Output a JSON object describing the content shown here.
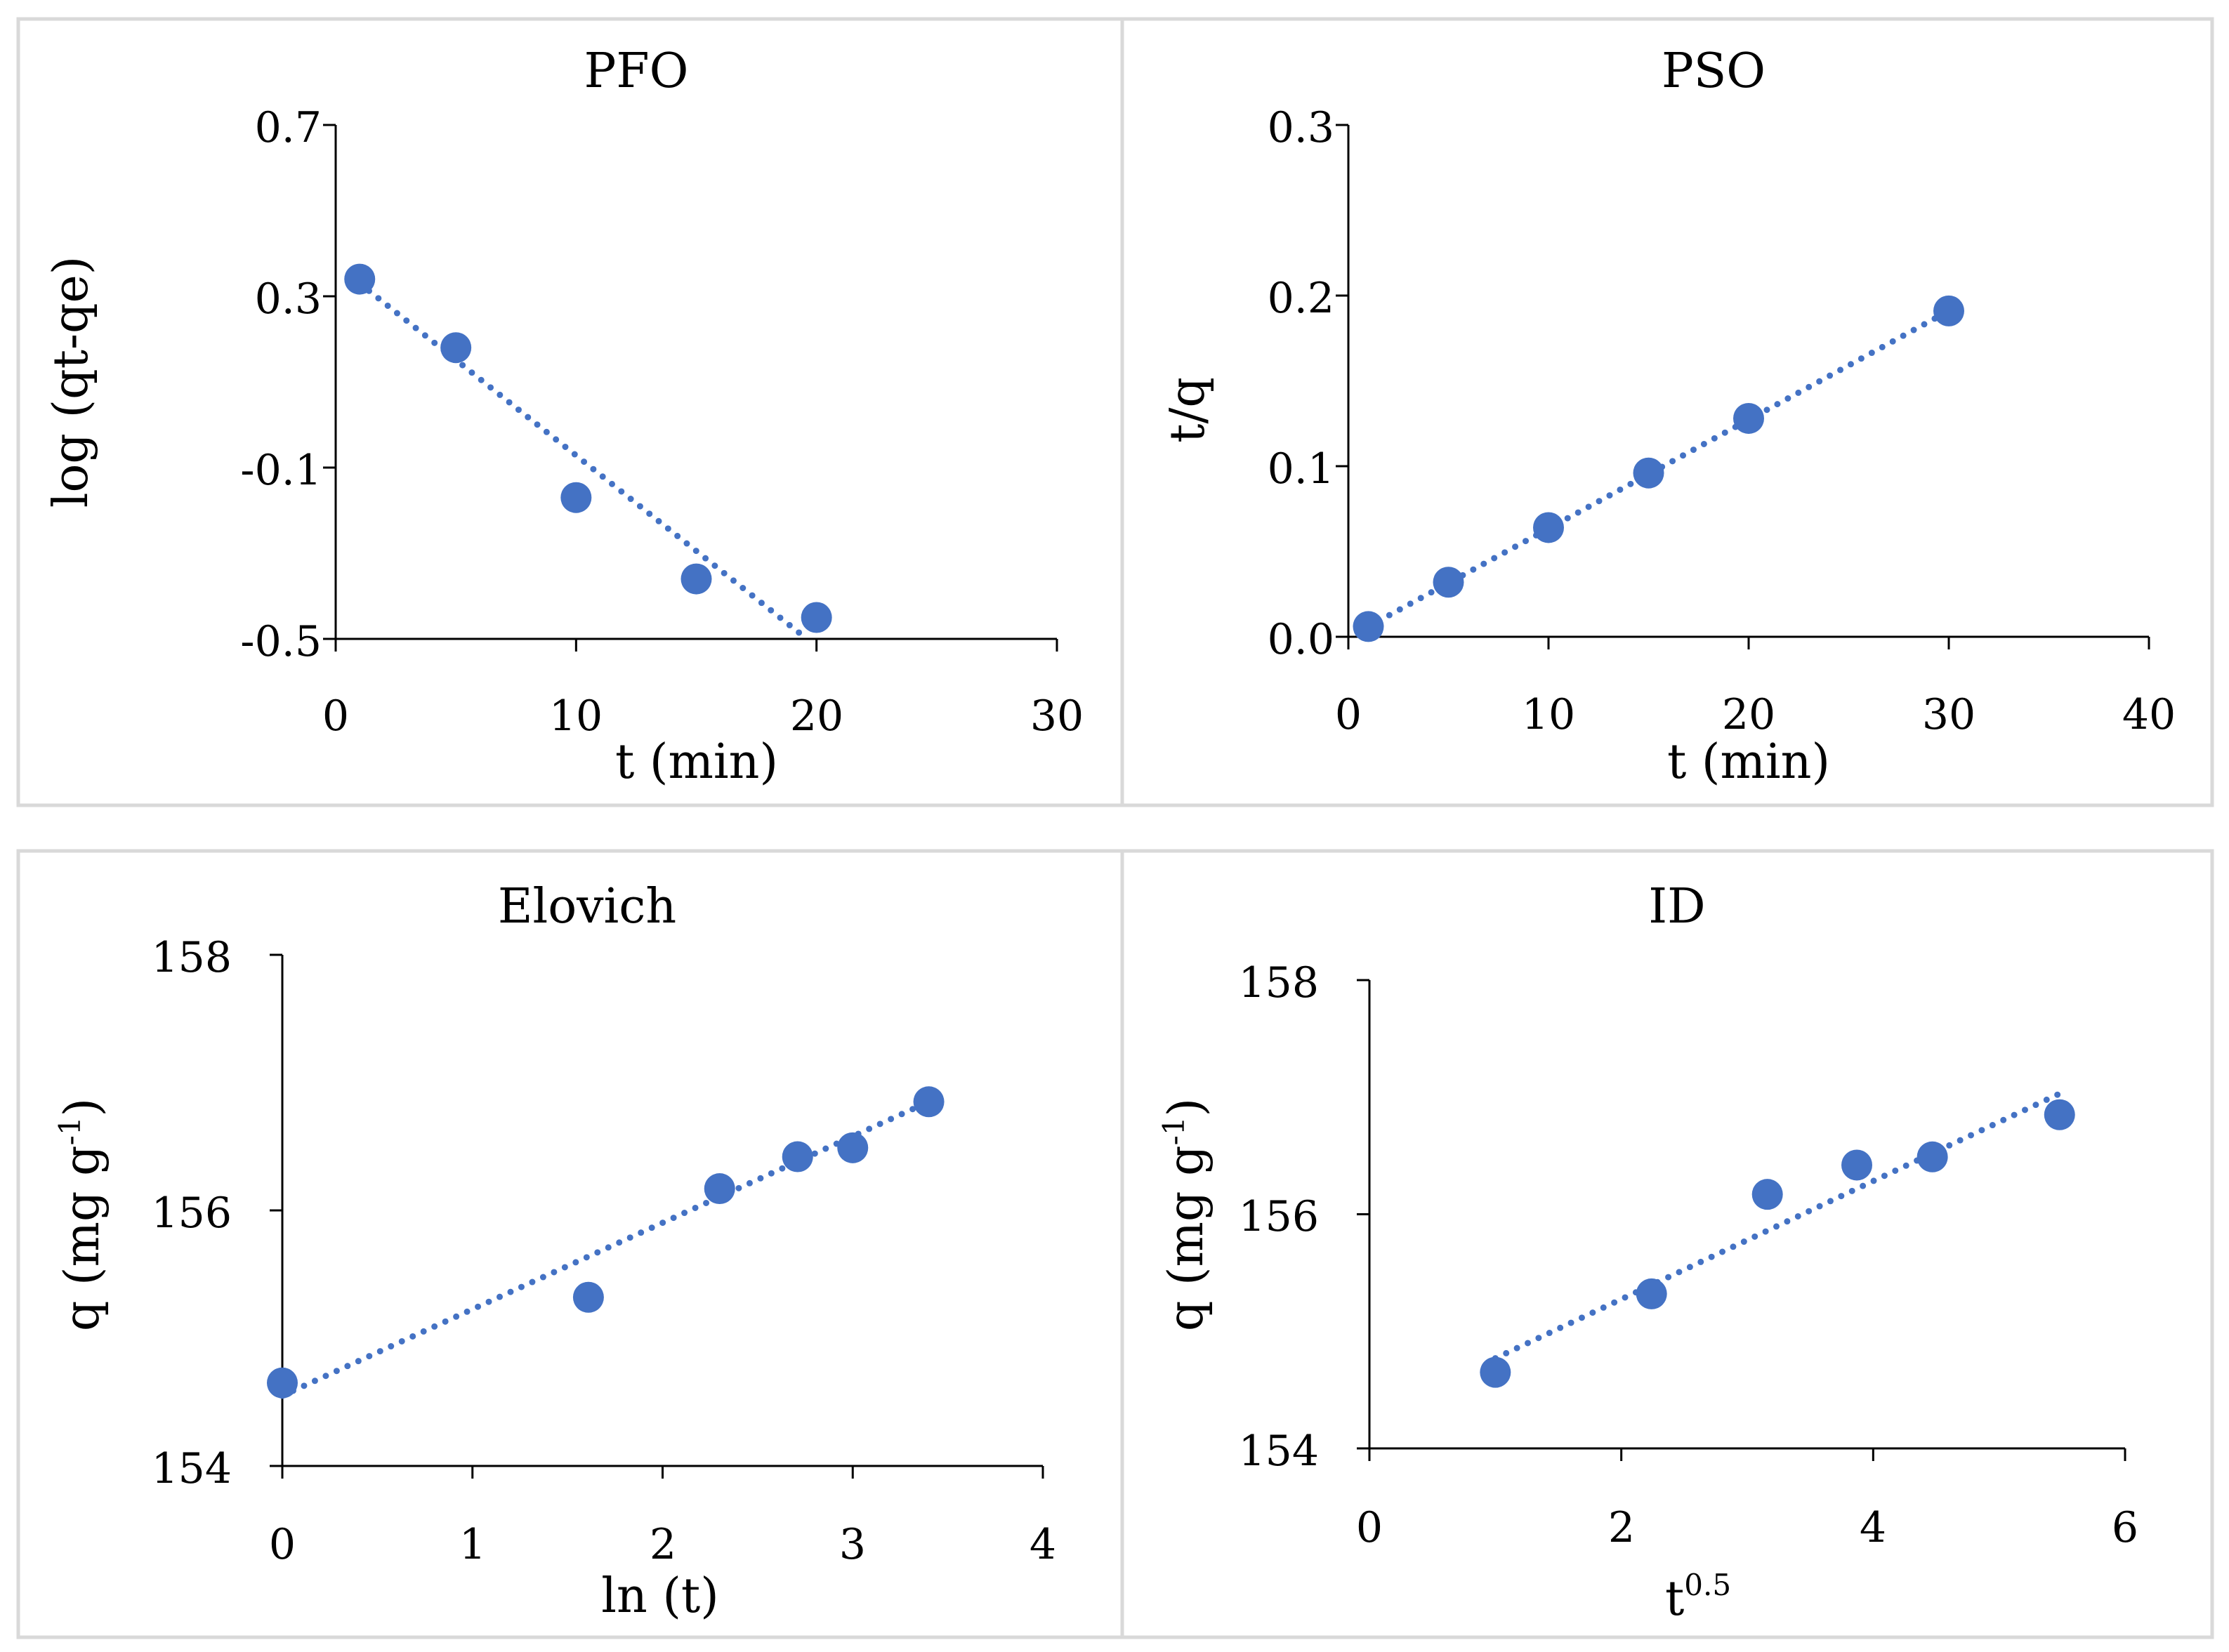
{
  "colors": {
    "marker": "#4472C4",
    "trend": "#4472C4",
    "axis": "#000000",
    "frame": "#D9D9D9"
  },
  "chart_data": [
    {
      "type": "scatter",
      "title": "PFO",
      "xlabel": "t (min)",
      "ylabel": "log (qt-qe)",
      "xlim": [
        0,
        30
      ],
      "ylim": [
        -0.5,
        0.7
      ],
      "x_ticks": [
        0,
        10,
        20,
        30
      ],
      "x_tick_labels": [
        "0",
        "10",
        "20",
        "30"
      ],
      "y_ticks": [
        -0.5,
        -0.1,
        0.3,
        0.7
      ],
      "y_tick_labels": [
        "-0.5",
        "-0.1",
        "0.3",
        "0.7"
      ],
      "x": [
        1,
        5,
        10,
        15,
        20
      ],
      "y": [
        0.34,
        0.18,
        -0.17,
        -0.36,
        -0.45
      ],
      "trendline": {
        "type": "linear",
        "x": [
          1,
          19.6
        ],
        "y": [
          0.33,
          -0.5
        ]
      },
      "grid": false
    },
    {
      "type": "scatter",
      "title": "PSO",
      "xlabel": "t (min)",
      "ylabel": "t/q",
      "xlim": [
        0,
        40
      ],
      "ylim": [
        0,
        0.3
      ],
      "x_ticks": [
        0,
        10,
        20,
        30,
        40
      ],
      "x_tick_labels": [
        "0",
        "10",
        "20",
        "30",
        "40"
      ],
      "y_ticks": [
        0,
        0.1,
        0.2,
        0.3
      ],
      "y_tick_labels": [
        "0.0",
        "0.1",
        "0.2",
        "0.3"
      ],
      "x": [
        1,
        5,
        10,
        15,
        20,
        30
      ],
      "y": [
        0.006,
        0.032,
        0.064,
        0.096,
        0.128,
        0.191
      ],
      "trendline": {
        "type": "linear",
        "x": [
          1,
          30
        ],
        "y": [
          0.006,
          0.191
        ]
      },
      "grid": false
    },
    {
      "type": "scatter",
      "title": "Elovich",
      "xlabel": "ln (t)",
      "ylabel": "q (mg g-1)",
      "ylabel_main": "q (mg g",
      "ylabel_sup": "-1",
      "ylabel_tail": ")",
      "xlim": [
        0,
        4
      ],
      "ylim": [
        154,
        158
      ],
      "x_ticks": [
        0,
        1,
        2,
        3,
        4
      ],
      "x_tick_labels": [
        "0",
        "1",
        "2",
        "3",
        "4"
      ],
      "y_ticks": [
        154,
        156,
        158
      ],
      "y_tick_labels": [
        "154",
        "156",
        "158"
      ],
      "x": [
        0,
        1.61,
        2.3,
        2.71,
        3.0,
        3.4
      ],
      "y": [
        154.65,
        155.32,
        156.17,
        156.42,
        156.49,
        156.85
      ],
      "trendline": {
        "type": "linear",
        "x": [
          0,
          3.4
        ],
        "y": [
          154.55,
          156.85
        ]
      },
      "grid": false
    },
    {
      "type": "scatter",
      "title": "ID",
      "xlabel": "t0.5",
      "xlabel_main": "t",
      "xlabel_sup": "0.5",
      "ylabel": "q (mg g-1)",
      "ylabel_main": "q (mg g",
      "ylabel_sup": "-1",
      "ylabel_tail": ")",
      "xlim": [
        0,
        6
      ],
      "ylim": [
        154,
        158
      ],
      "x_ticks": [
        0,
        2,
        4,
        6
      ],
      "x_tick_labels": [
        "0",
        "2",
        "4",
        "6"
      ],
      "y_ticks": [
        154,
        156,
        158
      ],
      "y_tick_labels": [
        "154",
        "156",
        "158"
      ],
      "x": [
        1,
        2.24,
        3.16,
        3.87,
        4.47,
        5.48
      ],
      "y": [
        154.65,
        155.32,
        156.17,
        156.42,
        156.49,
        156.85
      ],
      "trendline": {
        "type": "linear",
        "x": [
          1,
          5.48
        ],
        "y": [
          154.77,
          157.03
        ]
      },
      "grid": false
    }
  ]
}
